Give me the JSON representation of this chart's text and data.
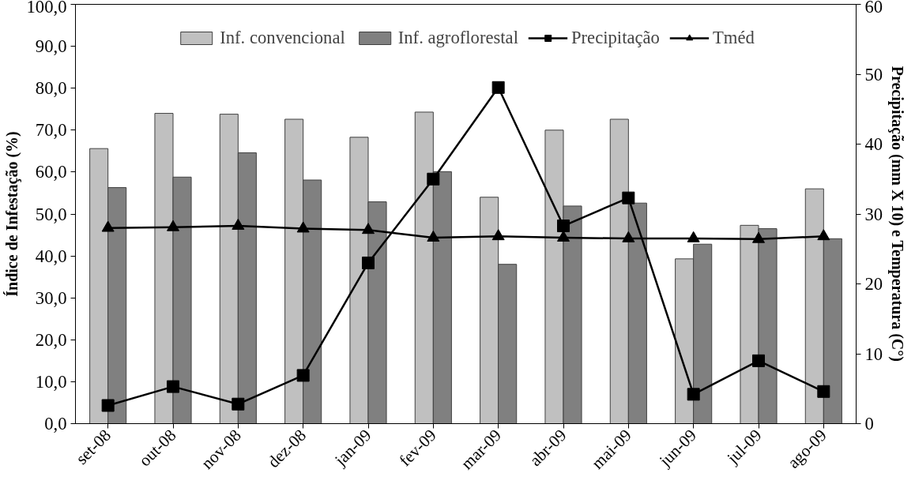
{
  "chart_data": {
    "type": "bar",
    "ylabel": "Índice de Infestação (%)",
    "y2label": "Precipitação (mm X 10) e Temperatura (C°)",
    "categories": [
      "set-08",
      "out-08",
      "nov-08",
      "dez-08",
      "jan-09",
      "fev-09",
      "mar-09",
      "abr-09",
      "mai-09",
      "jun-09",
      "jul-09",
      "ago-09"
    ],
    "series": [
      {
        "name": "Inf. convencional",
        "color": "#c0c0c0",
        "values": [
          65.6,
          74.0,
          73.8,
          72.6,
          68.3,
          74.3,
          54.0,
          70.0,
          72.6,
          39.3,
          47.3,
          56.0
        ]
      },
      {
        "name": "Inf. agroflorestal",
        "color": "#808080",
        "values": [
          56.3,
          58.8,
          64.6,
          58.1,
          52.9,
          60.1,
          38.0,
          51.9,
          52.6,
          42.8,
          46.5,
          44.1
        ]
      },
      {
        "name": "Precipitação",
        "type": "line",
        "axis": "y2",
        "marker": "square",
        "color": "#000000",
        "values": [
          2.6,
          5.3,
          2.8,
          6.9,
          23.0,
          35.0,
          48.1,
          28.3,
          32.3,
          4.2,
          9.0,
          4.6
        ]
      },
      {
        "name": "Tméd",
        "type": "line",
        "axis": "y2",
        "marker": "triangle",
        "color": "#000000",
        "values": [
          28.0,
          28.1,
          28.3,
          27.9,
          27.7,
          26.6,
          26.8,
          26.6,
          26.5,
          26.5,
          26.4,
          26.8
        ]
      }
    ],
    "ylim": [
      0,
      100
    ],
    "yticks": [
      {
        "value": 0,
        "label": "0,0"
      },
      {
        "value": 10,
        "label": "10,0"
      },
      {
        "value": 20,
        "label": "20,0"
      },
      {
        "value": 30,
        "label": "30,0"
      },
      {
        "value": 40,
        "label": "40,0"
      },
      {
        "value": 50,
        "label": "50,0"
      },
      {
        "value": 60,
        "label": "60,0"
      },
      {
        "value": 70,
        "label": "70,0"
      },
      {
        "value": 80,
        "label": "80,0"
      },
      {
        "value": 90,
        "label": "90,0"
      },
      {
        "value": 100,
        "label": "100,0"
      }
    ],
    "y2lim": [
      0,
      60
    ],
    "y2ticks": [
      0,
      10,
      20,
      30,
      40,
      50,
      60
    ],
    "legend": "top",
    "grid": false,
    "line_style": "solid"
  }
}
